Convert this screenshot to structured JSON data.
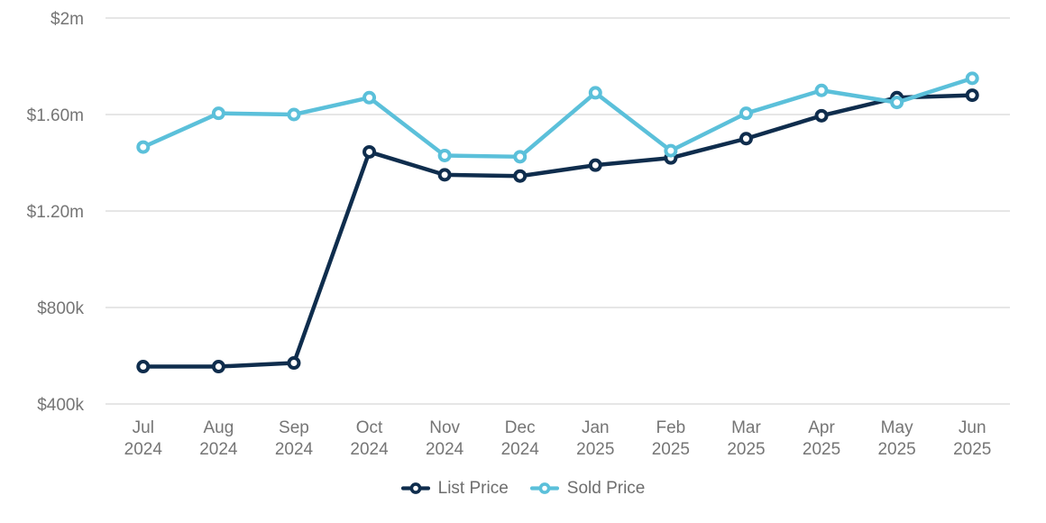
{
  "chart_data": {
    "type": "line",
    "title": "",
    "xlabel": "",
    "ylabel": "",
    "categories": [
      "Jul 2024",
      "Aug 2024",
      "Sep 2024",
      "Oct 2024",
      "Nov 2024",
      "Dec 2024",
      "Jan 2025",
      "Feb 2025",
      "Mar 2025",
      "Apr 2025",
      "May 2025",
      "Jun 2025"
    ],
    "series": [
      {
        "name": "List Price",
        "color": "#0F2D4D",
        "values": [
          555000,
          555000,
          570000,
          1445000,
          1350000,
          1345000,
          1390000,
          1420000,
          1500000,
          1595000,
          1670000,
          1680000
        ]
      },
      {
        "name": "Sold Price",
        "color": "#5BC0DA",
        "values": [
          1465000,
          1605000,
          1600000,
          1670000,
          1430000,
          1425000,
          1690000,
          1450000,
          1605000,
          1700000,
          1650000,
          1750000
        ]
      }
    ],
    "y_ticks": [
      {
        "value": 2000000,
        "label": "$2m"
      },
      {
        "value": 1600000,
        "label": "$1.60m"
      },
      {
        "value": 1200000,
        "label": "$1.20m"
      },
      {
        "value": 800000,
        "label": "$800k"
      },
      {
        "value": 400000,
        "label": "$400k"
      }
    ],
    "ylim": [
      400000,
      2000000
    ],
    "grid": true,
    "legend_position": "bottom",
    "colors": {
      "grid": "#DDDDDD",
      "axis_label": "#757575",
      "legend_text": "#6E6E6E",
      "background": "#FFFFFF"
    }
  }
}
